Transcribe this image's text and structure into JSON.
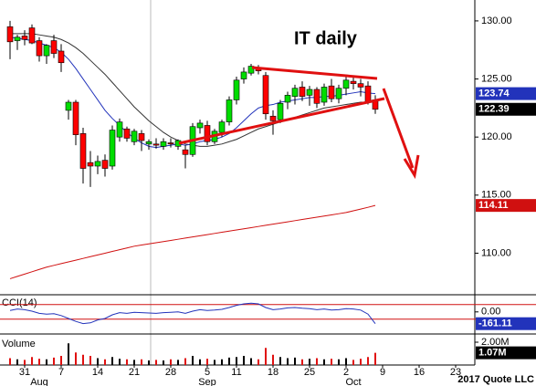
{
  "chart_data": [
    {
      "type": "candlestick",
      "annotation": "IT daily",
      "up_color": "#00dd00",
      "down_color": "#ff0000",
      "ylim": [
        106.5,
        131.8
      ],
      "yticks": [
        {
          "value": 110,
          "label": "110.00"
        },
        {
          "value": 115,
          "label": "115.00"
        },
        {
          "value": 120,
          "label": "120.00"
        },
        {
          "value": 125,
          "label": "125.00"
        },
        {
          "value": 130,
          "label": "130.00"
        }
      ],
      "open": [
        129.5,
        128.3,
        128.7,
        129.4,
        128.3,
        127,
        128.3,
        127.4,
        122.3,
        123,
        120.3,
        117.8,
        117.5,
        118,
        117.5,
        120,
        120.7,
        119.6,
        120.3,
        119.4,
        119.4,
        119.2,
        119.5,
        119.2,
        118.9,
        118.5,
        120.8,
        121,
        119.6,
        120.4,
        121.3,
        123.2,
        125,
        125.5,
        126,
        125.3,
        121.8,
        121.5,
        123,
        123.5,
        124.3,
        123.6,
        124.1,
        123,
        124.4,
        123.3,
        124.2,
        124.8,
        124.6,
        124.4,
        123.2,
        null,
        null,
        null,
        null,
        null,
        null,
        null,
        null,
        null,
        null,
        null
      ],
      "high": [
        130,
        128.8,
        129.2,
        129.7,
        128.6,
        128,
        128.8,
        128,
        123.2,
        123.2,
        120.8,
        118.8,
        118.4,
        118.5,
        121,
        121.6,
        120.9,
        120.7,
        120.6,
        119.8,
        119.9,
        119.9,
        119.9,
        119.8,
        119.3,
        121.2,
        121.5,
        121.4,
        120.7,
        121.5,
        123.5,
        125.2,
        126,
        126.3,
        126.2,
        125.6,
        122.3,
        123.2,
        123.9,
        124.5,
        124.8,
        124.4,
        124.3,
        124.6,
        125,
        124.5,
        125.2,
        125.3,
        125,
        124.8,
        123.6,
        null,
        null,
        null,
        null,
        null,
        null,
        null,
        null,
        null,
        null,
        null
      ],
      "low": [
        126.7,
        127.5,
        127.9,
        128,
        126.5,
        126.3,
        126.8,
        125.6,
        121.5,
        119.3,
        116,
        115.7,
        116.8,
        116.6,
        117.2,
        119.6,
        119.6,
        119.3,
        118.8,
        118.9,
        119,
        118.9,
        119.1,
        118.9,
        117.3,
        118.3,
        120.3,
        119.3,
        119.4,
        120,
        121,
        122.8,
        124.6,
        125.3,
        125.4,
        121.5,
        120.2,
        121.2,
        122.4,
        122.8,
        123.1,
        122.7,
        122.5,
        122.7,
        123,
        122.9,
        123.6,
        124.1,
        123.5,
        122.8,
        122,
        null,
        null,
        null,
        null,
        null,
        null,
        null,
        null,
        null,
        null,
        null
      ],
      "close": [
        128.2,
        128.6,
        128.4,
        128.1,
        127,
        127.9,
        127.2,
        126.4,
        123,
        120.2,
        117.3,
        117.5,
        117.9,
        117.3,
        120.6,
        121.3,
        119.9,
        120.5,
        119.7,
        119.6,
        119.3,
        119.6,
        119.4,
        119.7,
        118.5,
        120.9,
        121.2,
        119.6,
        120.5,
        121.3,
        123.2,
        124.9,
        125.6,
        126.1,
        125.7,
        122,
        121.4,
        122.9,
        123.6,
        124.2,
        123.5,
        124.1,
        122.9,
        124.3,
        123.3,
        124.2,
        124.9,
        124.6,
        124.3,
        123,
        122.39,
        null,
        null,
        null,
        null,
        null,
        null,
        null,
        null,
        null,
        null,
        null
      ],
      "series": [
        {
          "color": "#d01010",
          "values": [
            107.8,
            108.0,
            108.2,
            108.4,
            108.6,
            108.8,
            108.95,
            109.1,
            109.25,
            109.4,
            109.55,
            109.7,
            109.85,
            110.0,
            110.15,
            110.3,
            110.45,
            110.6,
            110.7,
            110.8,
            110.9,
            111.0,
            111.1,
            111.2,
            111.3,
            111.4,
            111.5,
            111.6,
            111.7,
            111.8,
            111.9,
            112.0,
            112.1,
            112.2,
            112.3,
            112.4,
            112.5,
            112.6,
            112.7,
            112.8,
            112.9,
            113.0,
            113.1,
            113.2,
            113.3,
            113.4,
            113.5,
            113.65,
            113.8,
            113.95,
            114.11,
            null,
            null,
            null,
            null,
            null,
            null,
            null,
            null,
            null,
            null,
            null
          ]
        },
        {
          "color": "#333333",
          "values": [
            128.9,
            128.9,
            128.9,
            128.9,
            128.8,
            128.7,
            128.6,
            128.4,
            128.1,
            127.7,
            127.2,
            126.6,
            126,
            125.4,
            124.7,
            124,
            123.3,
            122.6,
            122,
            121.4,
            120.9,
            120.4,
            120,
            119.7,
            119.4,
            119.3,
            119.2,
            119.2,
            119.3,
            119.4,
            119.6,
            119.8,
            120.1,
            120.4,
            120.7,
            120.9,
            121.1,
            121.3,
            121.5,
            121.7,
            121.9,
            122.1,
            122.3,
            122.5,
            122.6,
            122.7,
            122.8,
            122.9,
            123,
            123,
            123,
            null,
            null,
            null,
            null,
            null,
            null,
            null,
            null,
            null,
            null,
            null
          ]
        },
        {
          "color": "#2233bb",
          "values": [
            128.6,
            128.5,
            128.4,
            128.3,
            128.1,
            127.9,
            127.7,
            127.3,
            126.7,
            125.9,
            125,
            124.1,
            123.2,
            122.3,
            121.6,
            121,
            120.4,
            119.9,
            119.5,
            119.2,
            119.1,
            119.2,
            119.3,
            119.4,
            119.3,
            119.4,
            119.6,
            119.7,
            119.8,
            120.0,
            120.3,
            120.8,
            121.4,
            122,
            122.5,
            122.7,
            122.8,
            123,
            123.1,
            123.2,
            123.3,
            123.4,
            123.4,
            123.5,
            123.5,
            123.6,
            123.7,
            123.8,
            123.9,
            123.8,
            123.74,
            null,
            null,
            null,
            null,
            null,
            null,
            null,
            null,
            null,
            null,
            null
          ]
        }
      ]
    },
    {
      "type": "line",
      "title": "CCI(14)",
      "ylim": [
        -290,
        210
      ],
      "yticks": [
        {
          "value": 0,
          "label": "0.00"
        }
      ],
      "ref_lines": [
        100,
        -100
      ],
      "ref_color": "#d01010",
      "color": "#2233bb",
      "values": [
        20,
        40,
        30,
        10,
        -20,
        -30,
        -25,
        -50,
        -90,
        -130,
        -160,
        -150,
        -110,
        -90,
        -40,
        -10,
        -20,
        -5,
        -10,
        -15,
        -20,
        -10,
        -5,
        0,
        -20,
        10,
        30,
        20,
        25,
        35,
        60,
        90,
        110,
        120,
        110,
        60,
        30,
        40,
        55,
        60,
        50,
        45,
        30,
        40,
        25,
        30,
        45,
        40,
        25,
        -30,
        -161.11,
        null,
        null,
        null,
        null,
        null,
        null,
        null,
        null,
        null,
        null,
        null
      ]
    },
    {
      "type": "bar",
      "title": "Volume",
      "source": "2017 Quote LLC",
      "ylim": [
        0,
        2560000
      ],
      "yticks": [
        {
          "value": 2000000,
          "label": "2.00M"
        }
      ],
      "categories": [
        null,
        null,
        "31",
        null,
        null,
        null,
        null,
        "7",
        null,
        null,
        null,
        null,
        "14",
        null,
        null,
        null,
        null,
        "21",
        null,
        null,
        null,
        null,
        "28",
        null,
        null,
        null,
        null,
        "5",
        null,
        null,
        null,
        "11",
        null,
        null,
        null,
        null,
        "18",
        null,
        null,
        null,
        null,
        "25",
        null,
        null,
        null,
        null,
        "2",
        null,
        null,
        null,
        null,
        "9",
        null,
        null,
        null,
        null,
        "16",
        null,
        null,
        null,
        null,
        "23"
      ],
      "months": [
        null,
        null,
        null,
        null,
        "Aug",
        null,
        null,
        null,
        null,
        null,
        null,
        null,
        null,
        null,
        null,
        null,
        null,
        null,
        null,
        null,
        null,
        null,
        null,
        null,
        null,
        null,
        null,
        "Sep",
        null,
        null,
        null,
        null,
        null,
        null,
        null,
        null,
        null,
        null,
        null,
        null,
        null,
        null,
        null,
        null,
        null,
        null,
        null,
        "Oct",
        null,
        null,
        null,
        null,
        null,
        null,
        null,
        null,
        null,
        null,
        null,
        null,
        null,
        null
      ],
      "values": [
        600000,
        500000,
        450000,
        700000,
        550000,
        500000,
        650000,
        800000,
        1900000,
        1100000,
        900000,
        800000,
        600000,
        500000,
        700000,
        550000,
        500000,
        450000,
        500000,
        400000,
        450000,
        400000,
        500000,
        450000,
        600000,
        800000,
        500000,
        550000,
        450000,
        500000,
        650000,
        700000,
        800000,
        600000,
        500000,
        1500000,
        900000,
        700000,
        600000,
        650000,
        500000,
        550000,
        600000,
        500000,
        550000,
        500000,
        600000,
        450000,
        550000,
        700000,
        1070000,
        null,
        null,
        null,
        null,
        null,
        null,
        null,
        null,
        null,
        null,
        null
      ],
      "value_labels": [
        null,
        null,
        null,
        null,
        null,
        null,
        null,
        null,
        null,
        null,
        null,
        null,
        null,
        null,
        null,
        null,
        null,
        null,
        null,
        null,
        null,
        null,
        null,
        null,
        null,
        null,
        null,
        null,
        null,
        null,
        null,
        null,
        null,
        null,
        null,
        null,
        null,
        null,
        null,
        null,
        null,
        null,
        null,
        null,
        null,
        null,
        null,
        null,
        null,
        null,
        "1.07M",
        null,
        null,
        null,
        null,
        null,
        null,
        null,
        null,
        null,
        null,
        null
      ]
    }
  ]
}
